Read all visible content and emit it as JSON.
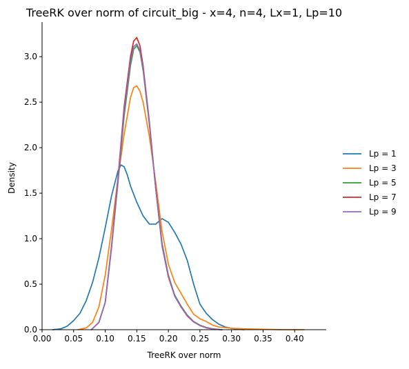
{
  "chart_data": {
    "type": "line",
    "title": "TreeRK over norm of circuit_big - x=4, n=4, Lx=1, Lp=10",
    "xlabel": "TreeRK over norm",
    "ylabel": "Density",
    "xlim": [
      0.0,
      0.45
    ],
    "ylim": [
      0.0,
      3.38
    ],
    "xticks": [
      0.0,
      0.05,
      0.1,
      0.15,
      0.2,
      0.25,
      0.3,
      0.35,
      0.4
    ],
    "xtick_labels": [
      "0.00",
      "0.05",
      "0.10",
      "0.15",
      "0.20",
      "0.25",
      "0.30",
      "0.35",
      "0.40"
    ],
    "yticks": [
      0.0,
      0.5,
      1.0,
      1.5,
      2.0,
      2.5,
      3.0
    ],
    "ytick_labels": [
      "0.0",
      "0.5",
      "1.0",
      "1.5",
      "2.0",
      "2.5",
      "3.0"
    ],
    "grid": false,
    "legend": "outside-right",
    "series": [
      {
        "name": "Lp = 1",
        "color": "#1f77b4",
        "x": [
          0.017,
          0.03,
          0.04,
          0.05,
          0.06,
          0.07,
          0.08,
          0.09,
          0.1,
          0.11,
          0.12,
          0.125,
          0.13,
          0.135,
          0.14,
          0.15,
          0.16,
          0.17,
          0.18,
          0.19,
          0.2,
          0.21,
          0.22,
          0.23,
          0.24,
          0.25,
          0.26,
          0.27,
          0.28,
          0.29,
          0.3,
          0.31,
          0.32
        ],
        "y": [
          0.0,
          0.01,
          0.04,
          0.1,
          0.18,
          0.32,
          0.52,
          0.79,
          1.12,
          1.47,
          1.74,
          1.81,
          1.79,
          1.7,
          1.58,
          1.4,
          1.25,
          1.16,
          1.16,
          1.22,
          1.18,
          1.07,
          0.94,
          0.76,
          0.5,
          0.28,
          0.18,
          0.11,
          0.06,
          0.03,
          0.015,
          0.005,
          0.0
        ]
      },
      {
        "name": "Lp = 3",
        "color": "#ff7f0e",
        "x": [
          0.057,
          0.07,
          0.08,
          0.09,
          0.1,
          0.11,
          0.12,
          0.13,
          0.14,
          0.145,
          0.15,
          0.155,
          0.16,
          0.17,
          0.18,
          0.19,
          0.2,
          0.21,
          0.22,
          0.23,
          0.24,
          0.25,
          0.26,
          0.27,
          0.28,
          0.3,
          0.32,
          0.35,
          0.38,
          0.415
        ],
        "y": [
          0.0,
          0.02,
          0.08,
          0.25,
          0.6,
          1.1,
          1.65,
          2.15,
          2.55,
          2.66,
          2.68,
          2.62,
          2.5,
          2.12,
          1.62,
          1.08,
          0.72,
          0.52,
          0.4,
          0.28,
          0.17,
          0.12,
          0.09,
          0.05,
          0.03,
          0.015,
          0.01,
          0.005,
          0.0,
          0.0
        ]
      },
      {
        "name": "Lp = 5",
        "color": "#2ca02c",
        "x": [
          0.078,
          0.09,
          0.1,
          0.11,
          0.12,
          0.13,
          0.14,
          0.145,
          0.15,
          0.155,
          0.16,
          0.17,
          0.18,
          0.19,
          0.2,
          0.21,
          0.22,
          0.23,
          0.24,
          0.25,
          0.26,
          0.27,
          0.28,
          0.285
        ],
        "y": [
          0.0,
          0.08,
          0.3,
          0.9,
          1.6,
          2.35,
          2.9,
          3.08,
          3.12,
          3.05,
          2.85,
          2.25,
          1.55,
          0.95,
          0.6,
          0.38,
          0.26,
          0.16,
          0.09,
          0.05,
          0.025,
          0.01,
          0.003,
          0.0
        ]
      },
      {
        "name": "Lp = 7",
        "color": "#d62728",
        "x": [
          0.078,
          0.09,
          0.1,
          0.11,
          0.12,
          0.13,
          0.14,
          0.145,
          0.15,
          0.155,
          0.16,
          0.17,
          0.18,
          0.19,
          0.2,
          0.21,
          0.22,
          0.23,
          0.24,
          0.25,
          0.26,
          0.27,
          0.28,
          0.285
        ],
        "y": [
          0.0,
          0.08,
          0.3,
          0.92,
          1.65,
          2.45,
          3.0,
          3.17,
          3.21,
          3.12,
          2.9,
          2.28,
          1.55,
          0.92,
          0.58,
          0.37,
          0.25,
          0.15,
          0.085,
          0.045,
          0.02,
          0.008,
          0.002,
          0.0
        ]
      },
      {
        "name": "Lp = 9",
        "color": "#9467bd",
        "x": [
          0.078,
          0.09,
          0.1,
          0.11,
          0.12,
          0.13,
          0.14,
          0.145,
          0.15,
          0.155,
          0.16,
          0.17,
          0.18,
          0.19,
          0.2,
          0.21,
          0.22,
          0.23,
          0.24,
          0.25,
          0.26,
          0.27,
          0.28,
          0.285
        ],
        "y": [
          0.0,
          0.08,
          0.3,
          0.9,
          1.62,
          2.4,
          2.95,
          3.11,
          3.14,
          3.07,
          2.87,
          2.26,
          1.55,
          0.93,
          0.59,
          0.37,
          0.25,
          0.155,
          0.088,
          0.047,
          0.022,
          0.009,
          0.002,
          0.0
        ]
      }
    ]
  }
}
